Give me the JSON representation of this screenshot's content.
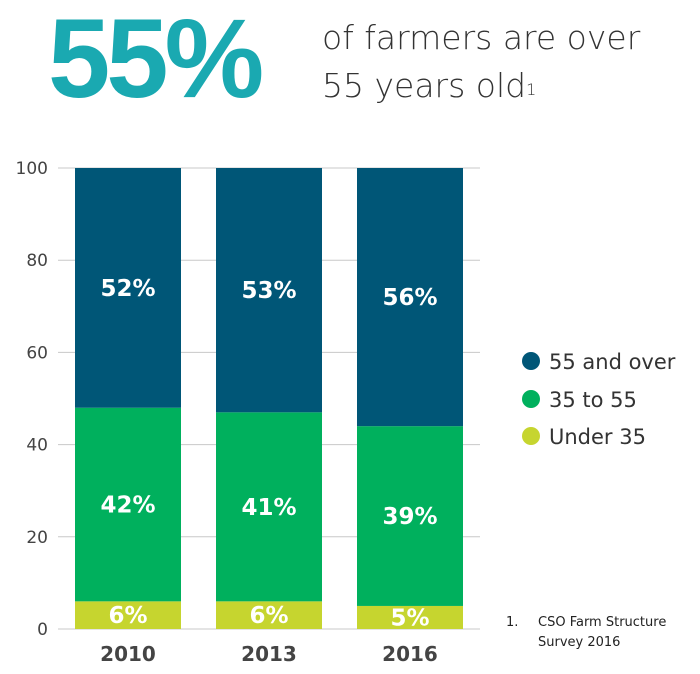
{
  "headline": {
    "value": "55%",
    "text_line1": "of farmers are over",
    "text_line2": "55 years old",
    "footnote_ref": "1"
  },
  "footnote": {
    "number": "1.",
    "text": "CSO Farm Structure Survey 2016"
  },
  "chart_data": {
    "type": "bar",
    "stacked": true,
    "categories": [
      "2010",
      "2013",
      "2016"
    ],
    "series": [
      {
        "name": "Under 35",
        "values": [
          6,
          6,
          5
        ],
        "labels": [
          "6%",
          "6%",
          "5%"
        ],
        "color": "#c6d52f"
      },
      {
        "name": "35 to 55",
        "values": [
          42,
          41,
          39
        ],
        "labels": [
          "42%",
          "41%",
          "39%"
        ],
        "color": "#00b05d"
      },
      {
        "name": "55 and over",
        "values": [
          52,
          53,
          56
        ],
        "labels": [
          "52%",
          "53%",
          "56%"
        ],
        "color": "#005677"
      }
    ],
    "ylim": [
      0,
      100
    ],
    "yticks": [
      0,
      20,
      40,
      60,
      80,
      100
    ],
    "grid": true,
    "legend_position": "right",
    "legend_order": [
      "55 and over",
      "35 to 55",
      "Under 35"
    ]
  }
}
